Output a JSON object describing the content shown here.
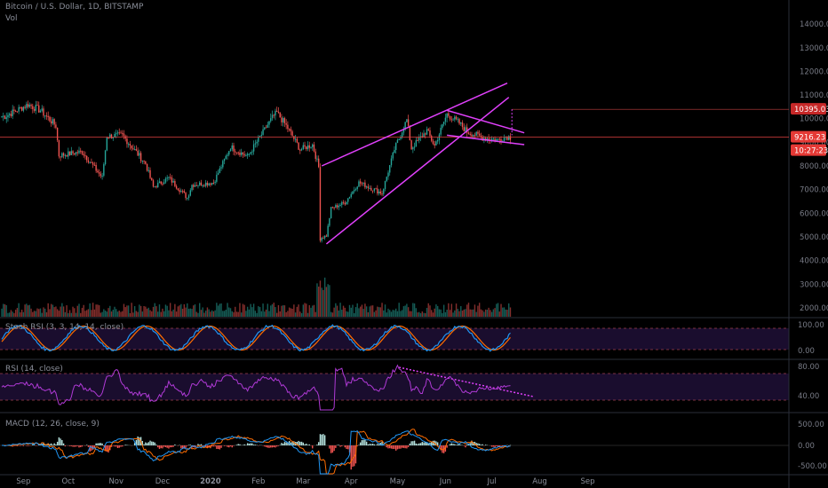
{
  "header": {
    "symbol_title": "Bitcoin / U.S. Dollar, 1D, BITSTAMP",
    "volume_label": "Vol",
    "stoch_label": "Stoch RSI (3, 3, 14, 14, close)",
    "rsi_label": "RSI (14, close)",
    "macd_label": "MACD (12, 26, close, 9)"
  },
  "colors": {
    "background": "#000000",
    "up": "#26a69a",
    "down": "#ef5350",
    "trendline": "#e040fb",
    "price_line": "#e04040",
    "stoch_k": "#2196f3",
    "stoch_d": "#ff6d00",
    "rsi": "#b03ad6",
    "macd": "#2196f3",
    "signal": "#ff6d00",
    "hist_up": "#b2dfdb",
    "hist_down": "#ef5350"
  },
  "badges": {
    "target_price": "10395.03",
    "last_price": "9216.23",
    "countdown": "10:27:23"
  },
  "chart_data": {
    "type": "candlestick",
    "title": "Bitcoin / U.S. Dollar, 1D, BITSTAMP",
    "price_ticks": [
      "14000.00",
      "13000.00",
      "12000.00",
      "11000.00",
      "10000.00",
      "9000.00",
      "8000.00",
      "7000.00",
      "6000.00",
      "5000.00",
      "4000.00",
      "3000.00",
      "2000.00"
    ],
    "stoch_ticks": [
      "100.00",
      "0.00"
    ],
    "rsi_ticks": [
      "80.00",
      "40.00"
    ],
    "macd_ticks": [
      "500.00",
      "0.00",
      "-500.00"
    ],
    "x_ticks": [
      "Sep",
      "Oct",
      "Nov",
      "Dec",
      "2020",
      "Feb",
      "Mar",
      "Apr",
      "May",
      "Jun",
      "Jul",
      "Aug",
      "Sep"
    ],
    "anchors": [
      {
        "date": "2019-08-21",
        "close": 10100
      },
      {
        "date": "2019-08-24",
        "close": 10200
      },
      {
        "date": "2019-09-05",
        "close": 10600
      },
      {
        "date": "2019-09-13",
        "close": 10350
      },
      {
        "date": "2019-09-23",
        "close": 9700
      },
      {
        "date": "2019-09-25",
        "close": 8450
      },
      {
        "date": "2019-10-10",
        "close": 8600
      },
      {
        "date": "2019-10-23",
        "close": 7500
      },
      {
        "date": "2019-10-26",
        "close": 9250
      },
      {
        "date": "2019-11-05",
        "close": 9300
      },
      {
        "date": "2019-11-20",
        "close": 8100
      },
      {
        "date": "2019-11-25",
        "close": 7100
      },
      {
        "date": "2019-12-05",
        "close": 7500
      },
      {
        "date": "2019-12-17",
        "close": 6650
      },
      {
        "date": "2019-12-20",
        "close": 7200
      },
      {
        "date": "2020-01-03",
        "close": 7300
      },
      {
        "date": "2020-01-14",
        "close": 8800
      },
      {
        "date": "2020-01-25",
        "close": 8400
      },
      {
        "date": "2020-02-10",
        "close": 10050
      },
      {
        "date": "2020-02-13",
        "close": 10250
      },
      {
        "date": "2020-02-20",
        "close": 9600
      },
      {
        "date": "2020-02-28",
        "close": 8700
      },
      {
        "date": "2020-03-07",
        "close": 8900
      },
      {
        "date": "2020-03-11",
        "close": 7950
      },
      {
        "date": "2020-03-12",
        "close": 4950
      },
      {
        "date": "2020-03-16",
        "close": 5050
      },
      {
        "date": "2020-03-19",
        "close": 6200
      },
      {
        "date": "2020-03-28",
        "close": 6450
      },
      {
        "date": "2020-04-06",
        "close": 7300
      },
      {
        "date": "2020-04-21",
        "close": 6850
      },
      {
        "date": "2020-04-29",
        "close": 8700
      },
      {
        "date": "2020-05-07",
        "close": 9950
      },
      {
        "date": "2020-05-10",
        "close": 8750
      },
      {
        "date": "2020-05-20",
        "close": 9500
      },
      {
        "date": "2020-05-25",
        "close": 8850
      },
      {
        "date": "2020-06-02",
        "close": 10200
      },
      {
        "date": "2020-06-10",
        "close": 9800
      },
      {
        "date": "2020-06-15",
        "close": 9450
      },
      {
        "date": "2020-06-25",
        "close": 9200
      },
      {
        "date": "2020-07-05",
        "close": 9100
      },
      {
        "date": "2020-07-10",
        "close": 9250
      },
      {
        "date": "2020-07-13",
        "close": 9216
      }
    ],
    "trendlines": [
      {
        "from": [
          "2020-03-13",
          8000
        ],
        "to": [
          "2020-07-11",
          11500
        ]
      },
      {
        "from": [
          "2020-03-16",
          4700
        ],
        "to": [
          "2020-07-12",
          10900
        ]
      },
      {
        "from": [
          "2020-06-02",
          10350
        ],
        "to": [
          "2020-07-22",
          9400
        ]
      },
      {
        "from": [
          "2020-06-02",
          9300
        ],
        "to": [
          "2020-07-22",
          8900
        ]
      },
      {
        "from": [
          "2020-05-02",
          6.9
        ],
        "to": [
          "2020-07-28",
          31
        ],
        "pane": "rsi"
      }
    ],
    "ylim": [
      1400,
      14800
    ]
  }
}
